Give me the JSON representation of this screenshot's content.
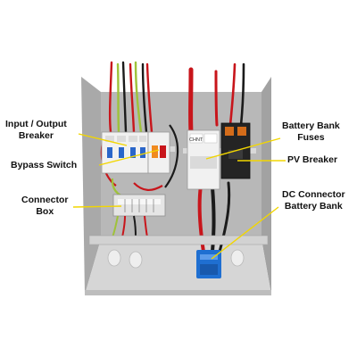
{
  "labels": {
    "input_output_breaker_line1": "Input / Output",
    "input_output_breaker_line2": "Breaker",
    "bypass_switch": "Bypass Switch",
    "connector_box_line1": "Connector",
    "connector_box_line2": "Box",
    "battery_bank_fuses_line1": "Battery Bank",
    "battery_bank_fuses_line2": "Fuses",
    "pv_breaker": "PV Breaker",
    "dc_connector_line1": "DC Connector",
    "dc_connector_line2": "Battery Bank"
  },
  "device_markings": {
    "fuse_brand": "CHNT"
  },
  "colors": {
    "callout_line": "#f2d600",
    "enclosure": "#c9c9c9",
    "enclosure_shadow": "#9c9c9c",
    "back_plate": "#b5b5b5",
    "red_cable": "#c8151b",
    "black_cable": "#1b1b1b",
    "yellow_green_cable": "#9fc23a",
    "blue_connector": "#1f6fd1",
    "breaker_body": "#f1f1f1",
    "handle_orange": "#f08a1f"
  }
}
